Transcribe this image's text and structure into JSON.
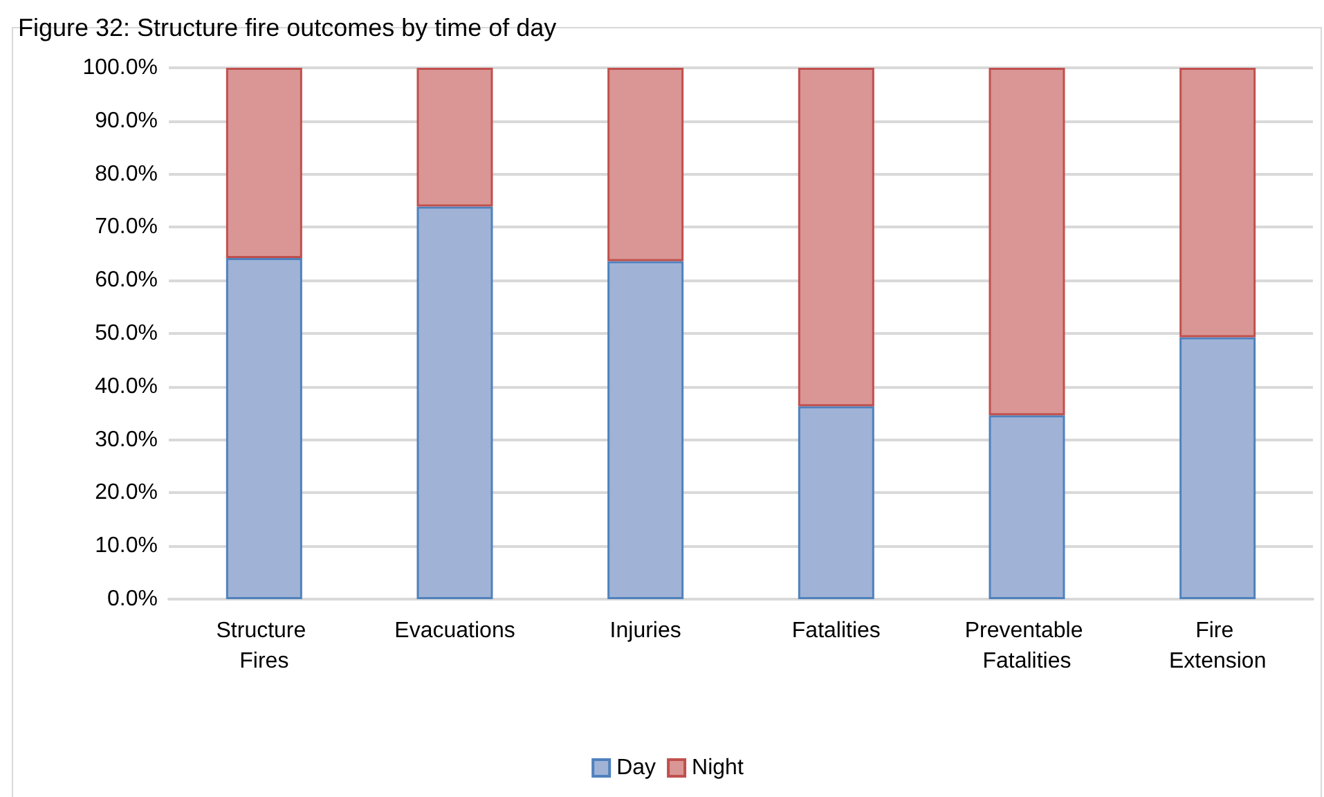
{
  "chart_data": {
    "type": "bar",
    "title": "Figure 32: Structure fire outcomes by time of day",
    "stacked": true,
    "categories": [
      "Structure Fires",
      "Evacuations",
      "Injuries",
      "Fatalities",
      "Preventable Fatalities",
      "Fire Extension"
    ],
    "series": [
      {
        "name": "Day",
        "color": "#a0b3d6",
        "values": [
          64.2,
          73.9,
          63.6,
          36.3,
          34.6,
          49.3
        ]
      },
      {
        "name": "Night",
        "color": "#d99694",
        "values": [
          35.8,
          26.1,
          36.4,
          63.7,
          65.4,
          50.7
        ]
      }
    ],
    "ylim": [
      0,
      100
    ],
    "yticks": [
      {
        "value": 0,
        "label": "0.0%"
      },
      {
        "value": 10,
        "label": "10.0%"
      },
      {
        "value": 20,
        "label": "20.0%"
      },
      {
        "value": 30,
        "label": "30.0%"
      },
      {
        "value": 40,
        "label": "40.0%"
      },
      {
        "value": 50,
        "label": "50.0%"
      },
      {
        "value": 60,
        "label": "60.0%"
      },
      {
        "value": 70,
        "label": "70.0%"
      },
      {
        "value": 80,
        "label": "80.0%"
      },
      {
        "value": 90,
        "label": "90.0%"
      },
      {
        "value": 100,
        "label": "100.0%"
      }
    ],
    "grid": "y",
    "legend": "bottom"
  }
}
